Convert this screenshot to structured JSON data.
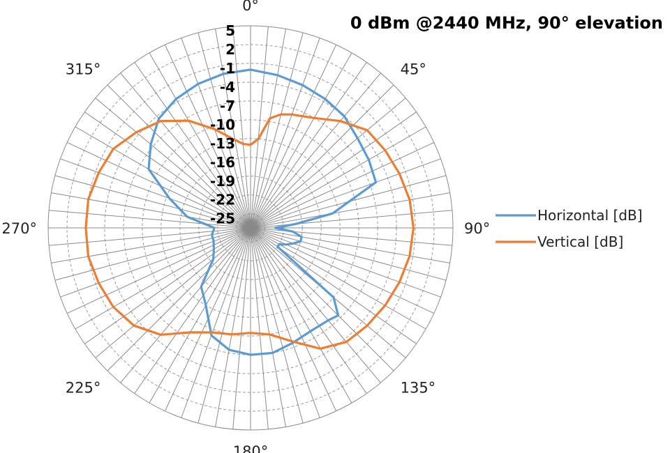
{
  "chart_data": {
    "type": "polar-line",
    "title": "0 dBm @2440 MHz, 90° elevation",
    "angle_ticks": [
      "0°",
      "45°",
      "90°",
      "135°",
      "180°",
      "225°",
      "270°",
      "315°"
    ],
    "angle_tick_degrees": [
      0,
      45,
      90,
      135,
      180,
      225,
      270,
      315
    ],
    "radial_ticks": [
      "5",
      "2",
      "-1",
      "-4",
      "-7",
      "-10",
      "-13",
      "-16",
      "-19",
      "-22",
      "-25"
    ],
    "radial_tick_values": [
      5,
      2,
      -1,
      -4,
      -7,
      -10,
      -13,
      -16,
      -19,
      -22,
      -25
    ],
    "rlim": [
      -25,
      5
    ],
    "grid": true,
    "legend_position": "right",
    "series": [
      {
        "name": "Horizontal [dB]",
        "color": "#5B9BD5",
        "angles": [
          0,
          10,
          20,
          30,
          40,
          50,
          60,
          70,
          80,
          85,
          90,
          95,
          100,
          105,
          110,
          115,
          120,
          125,
          130,
          135,
          140,
          150,
          160,
          170,
          180,
          190,
          200,
          210,
          220,
          230,
          240,
          250,
          260,
          270,
          280,
          290,
          300,
          310,
          320,
          330,
          340,
          350
        ],
        "values": [
          -2.0,
          -2.5,
          -3.0,
          -3.5,
          -4.0,
          -5.0,
          -5.5,
          -6.0,
          -14.0,
          -20.0,
          -23.3,
          -20.5,
          -19.0,
          -19.0,
          -20.0,
          -21.0,
          -22.0,
          -22.0,
          -10.0,
          -7.5,
          -8.0,
          -8.2,
          -7.7,
          -7.0,
          -7.0,
          -7.5,
          -9.0,
          -13.0,
          -15.0,
          -19.5,
          -20.5,
          -21.0,
          -21.0,
          -21.5,
          -17.0,
          -13.5,
          -8.5,
          -6.5,
          -4.5,
          -3.5,
          -2.8,
          -2.3
        ]
      },
      {
        "name": "Vertical [dB]",
        "color": "#ED7D31",
        "angles": [
          0,
          5,
          10,
          15,
          20,
          30,
          40,
          50,
          60,
          70,
          80,
          90,
          100,
          110,
          120,
          130,
          140,
          150,
          160,
          170,
          180,
          190,
          200,
          210,
          220,
          230,
          240,
          250,
          260,
          270,
          280,
          290,
          300,
          310,
          320,
          330,
          340,
          350,
          355
        ],
        "values": [
          -14.0,
          -13.0,
          -9.5,
          -8.5,
          -8.0,
          -7.0,
          -5.0,
          -3.0,
          -2.5,
          -2.0,
          -1.5,
          -1.3,
          -1.5,
          -2.0,
          -2.5,
          -3.0,
          -3.5,
          -5.0,
          -8.0,
          -10.0,
          -10.5,
          -10.0,
          -9.5,
          -8.0,
          -5.0,
          -3.0,
          -2.0,
          -1.5,
          -1.0,
          -1.0,
          -1.0,
          -1.5,
          -2.0,
          -3.5,
          -5.0,
          -7.5,
          -10.5,
          -13.0,
          -13.8
        ]
      }
    ]
  }
}
